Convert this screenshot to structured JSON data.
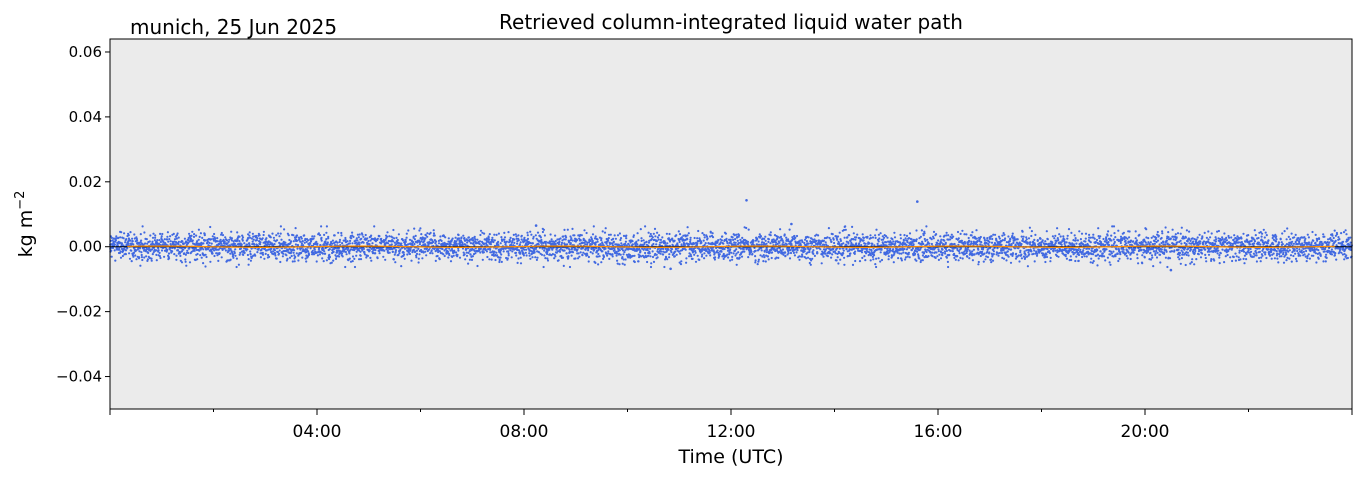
{
  "chart_data": {
    "type": "scatter",
    "title": "Retrieved column-integrated liquid water path",
    "location_date": "munich, 25 Jun 2025",
    "xlabel": "Time (UTC)",
    "ylabel": "kg m",
    "ylabel_superscript": "−2",
    "xlim": [
      "00:00",
      "24:00"
    ],
    "ylim": [
      -0.05,
      0.064
    ],
    "x_ticks": [
      "04:00",
      "08:00",
      "12:00",
      "16:00",
      "20:00"
    ],
    "y_ticks": [
      -0.04,
      -0.02,
      0.0,
      0.02,
      0.04,
      0.06
    ],
    "y_tick_labels": [
      "−0.04",
      "−0.02",
      "0.00",
      "0.02",
      "0.04",
      "0.06"
    ],
    "grid": false,
    "background": "#ebebeb",
    "reference_line_y": 0.0,
    "series": [
      {
        "kind": "scatter",
        "color": "#4169e1",
        "x_range": [
          "00:00",
          "24:00"
        ],
        "y_center": 0.0,
        "y_spread": 0.005,
        "outliers": [
          {
            "x": "12:18",
            "y": 0.0143
          },
          {
            "x": "15:36",
            "y": 0.0139
          },
          {
            "x": "13:10",
            "y": 0.007
          },
          {
            "x": "08:14",
            "y": 0.0065
          },
          {
            "x": "10:50",
            "y": -0.0068
          },
          {
            "x": "20:30",
            "y": -0.0072
          }
        ]
      },
      {
        "kind": "line",
        "color": "#ff8c00",
        "x_range": [
          "00:20",
          "23:40"
        ],
        "y": 0.0
      }
    ]
  }
}
